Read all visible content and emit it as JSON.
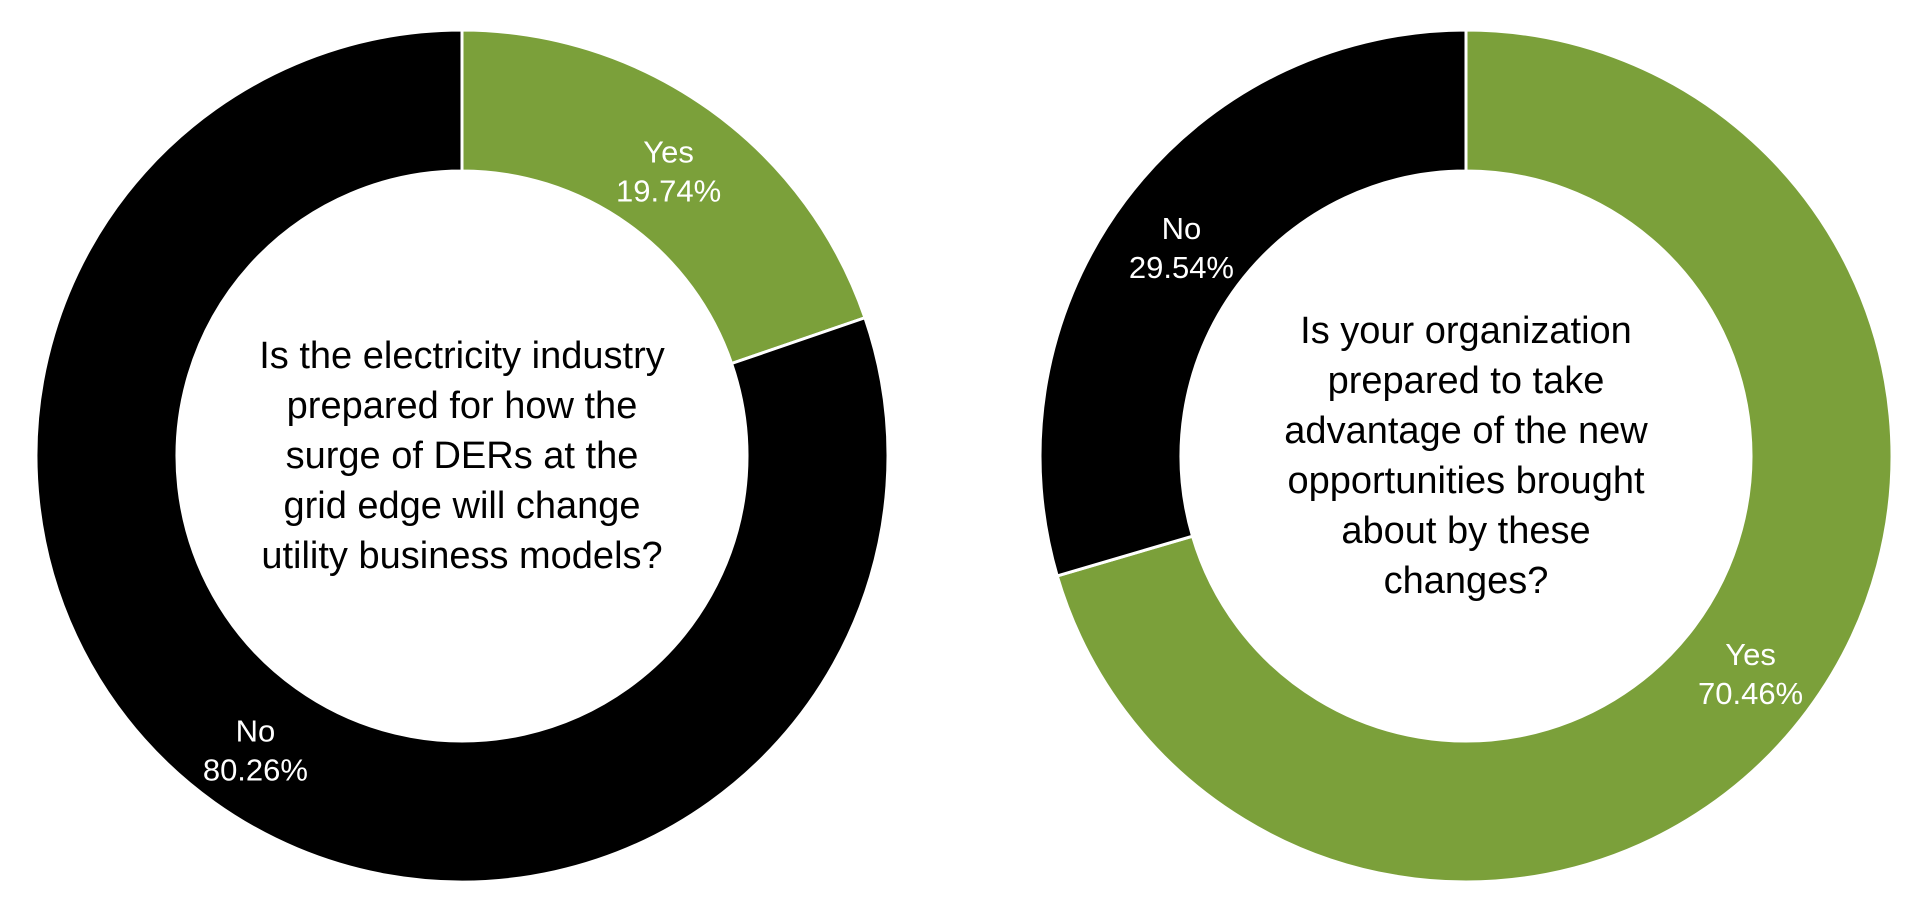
{
  "colors": {
    "yes": "#7ba03a",
    "no": "#000000",
    "background": "#ffffff",
    "label_text": "#ffffff",
    "question_text": "#000000"
  },
  "chart_data": [
    {
      "type": "pie",
      "subtype": "donut",
      "title": "Is the electricity industry prepared for how the surge of DERs at the grid edge will change utility business models?",
      "categories": [
        "Yes",
        "No"
      ],
      "values": [
        19.74,
        80.26
      ],
      "value_labels": [
        "19.74%",
        "80.26%"
      ],
      "colors": [
        "#7ba03a",
        "#000000"
      ],
      "start_angle_deg": 0,
      "direction": "clockwise",
      "legend": "none"
    },
    {
      "type": "pie",
      "subtype": "donut",
      "title": "Is your organization prepared to take advantage of the new opportunities brought about by these changes?",
      "categories": [
        "Yes",
        "No"
      ],
      "values": [
        70.46,
        29.54
      ],
      "value_labels": [
        "70.46%",
        "29.54%"
      ],
      "colors": [
        "#7ba03a",
        "#000000"
      ],
      "start_angle_deg": 0,
      "direction": "clockwise",
      "legend": "none"
    }
  ]
}
